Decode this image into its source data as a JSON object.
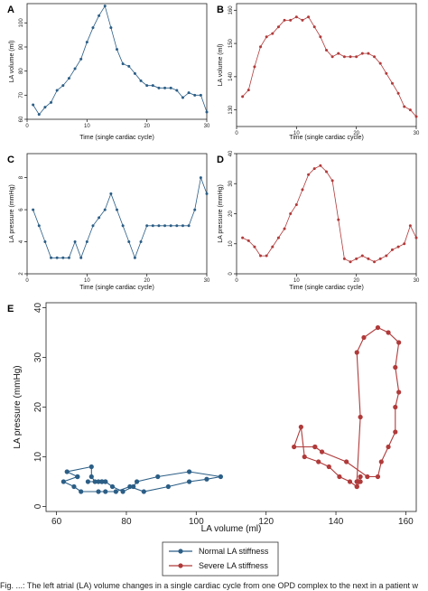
{
  "colors": {
    "normal": "#2b5e86",
    "severe": "#b03a3a",
    "panel_bg": "#ffffff",
    "frame": "#222222"
  },
  "caption": "Fig. ...: The left atrial (LA) volume changes in a single cardiac cycle from one OPD complex to the next in a patient w",
  "chart_data": [
    {
      "id": "A",
      "type": "line",
      "letter": "A",
      "xlabel": "Time (single cardiac cycle)",
      "ylabel": "LA volume (ml)",
      "xlim": [
        0,
        30
      ],
      "ylim": [
        60,
        108
      ],
      "xticks": [
        0,
        10,
        20,
        30
      ],
      "yticks": [
        60,
        70,
        80,
        90,
        100
      ],
      "color": "normal",
      "x": [
        1,
        2,
        3,
        4,
        5,
        6,
        7,
        8,
        9,
        10,
        11,
        12,
        13,
        14,
        15,
        16,
        17,
        18,
        19,
        20,
        21,
        22,
        23,
        24,
        25,
        26,
        27,
        28,
        29,
        30
      ],
      "y": [
        66,
        62,
        65,
        67,
        72,
        74,
        77,
        81,
        85,
        92,
        98,
        103,
        107,
        98,
        89,
        83,
        82,
        79,
        76,
        74,
        74,
        73,
        73,
        73,
        72,
        69,
        71,
        70,
        70,
        63
      ]
    },
    {
      "id": "B",
      "type": "line",
      "letter": "B",
      "xlabel": "Time (single cardiac cycle)",
      "ylabel": "LA volume (ml)",
      "xlim": [
        0,
        30
      ],
      "ylim": [
        125,
        162
      ],
      "xticks": [
        0,
        10,
        20,
        30
      ],
      "yticks": [
        130,
        140,
        150,
        160
      ],
      "color": "severe",
      "x": [
        1,
        2,
        3,
        4,
        5,
        6,
        7,
        8,
        9,
        10,
        11,
        12,
        13,
        14,
        15,
        16,
        17,
        18,
        19,
        20,
        21,
        22,
        23,
        24,
        25,
        26,
        27,
        28,
        29,
        30
      ],
      "y": [
        134,
        136,
        143,
        149,
        152,
        153,
        155,
        157,
        157,
        158,
        157,
        158,
        155,
        152,
        148,
        146,
        147,
        146,
        146,
        146,
        147,
        147,
        146,
        144,
        141,
        138,
        135,
        131,
        130,
        128
      ]
    },
    {
      "id": "C",
      "type": "line",
      "letter": "C",
      "xlabel": "Time (single cardiac cycle)",
      "ylabel": "LA pressure (mmHg)",
      "xlim": [
        0,
        30
      ],
      "ylim": [
        2,
        9.5
      ],
      "xticks": [
        0,
        10,
        20,
        30
      ],
      "yticks": [
        2,
        4,
        6,
        8
      ],
      "color": "normal",
      "x": [
        1,
        2,
        3,
        4,
        5,
        6,
        7,
        8,
        9,
        10,
        11,
        12,
        13,
        14,
        15,
        16,
        17,
        18,
        19,
        20,
        21,
        22,
        23,
        24,
        25,
        26,
        27,
        28,
        29,
        30
      ],
      "y": [
        6,
        5,
        4,
        3,
        3,
        3,
        3,
        4,
        3,
        4,
        5,
        5.5,
        6,
        7,
        6,
        5,
        4,
        3,
        4,
        5,
        5,
        5,
        5,
        5,
        5,
        5,
        5,
        6,
        8,
        7
      ]
    },
    {
      "id": "D",
      "type": "line",
      "letter": "D",
      "xlabel": "Time (single cardiac cycle)",
      "ylabel": "LA pressure (mmHg)",
      "xlim": [
        0,
        30
      ],
      "ylim": [
        0,
        40
      ],
      "xticks": [
        0,
        10,
        20,
        30
      ],
      "yticks": [
        0,
        10,
        20,
        30,
        40
      ],
      "color": "severe",
      "x": [
        1,
        2,
        3,
        4,
        5,
        6,
        7,
        8,
        9,
        10,
        11,
        12,
        13,
        14,
        15,
        16,
        17,
        18,
        19,
        20,
        21,
        22,
        23,
        24,
        25,
        26,
        27,
        28,
        29,
        30
      ],
      "y": [
        12,
        11,
        9,
        6,
        6,
        9,
        12,
        15,
        20,
        23,
        28,
        33,
        35,
        36,
        34,
        31,
        18,
        5,
        4,
        5,
        6,
        5,
        4,
        5,
        6,
        8,
        9,
        10,
        16,
        12
      ]
    },
    {
      "id": "E",
      "type": "line",
      "letter": "E",
      "xlabel": "LA volume (ml)",
      "ylabel": "LA pressure (mmHg)",
      "xlim": [
        57,
        163
      ],
      "ylim": [
        -1,
        41
      ],
      "xticks": [
        60,
        80,
        100,
        120,
        140,
        160
      ],
      "yticks": [
        0,
        10,
        20,
        30,
        40
      ],
      "legend": "bottom-center",
      "series": [
        {
          "name": "Normal LA stiffness",
          "color": "normal",
          "x": [
            66,
            62,
            65,
            67,
            72,
            74,
            77,
            81,
            85,
            92,
            98,
            103,
            107,
            98,
            89,
            83,
            82,
            79,
            76,
            74,
            74,
            73,
            73,
            73,
            72,
            69,
            71,
            70,
            70,
            63,
            66
          ],
          "y": [
            6,
            5,
            4,
            3,
            3,
            3,
            3,
            4,
            3,
            4,
            5,
            5.5,
            6,
            7,
            6,
            5,
            4,
            3,
            4,
            5,
            5,
            5,
            5,
            5,
            5,
            5,
            5,
            6,
            8,
            7,
            6
          ]
        },
        {
          "name": "Severe LA stiffness",
          "color": "severe",
          "x": [
            134,
            136,
            143,
            149,
            152,
            153,
            155,
            157,
            157,
            158,
            157,
            158,
            155,
            152,
            148,
            146,
            147,
            146,
            146,
            146,
            147,
            147,
            146,
            144,
            141,
            138,
            135,
            131,
            130,
            128,
            134
          ],
          "y": [
            12,
            11,
            9,
            6,
            6,
            9,
            12,
            15,
            20,
            23,
            28,
            33,
            35,
            36,
            34,
            31,
            18,
            5,
            4,
            5,
            6,
            5,
            4,
            5,
            6,
            8,
            9,
            10,
            16,
            12,
            12
          ]
        }
      ]
    }
  ]
}
